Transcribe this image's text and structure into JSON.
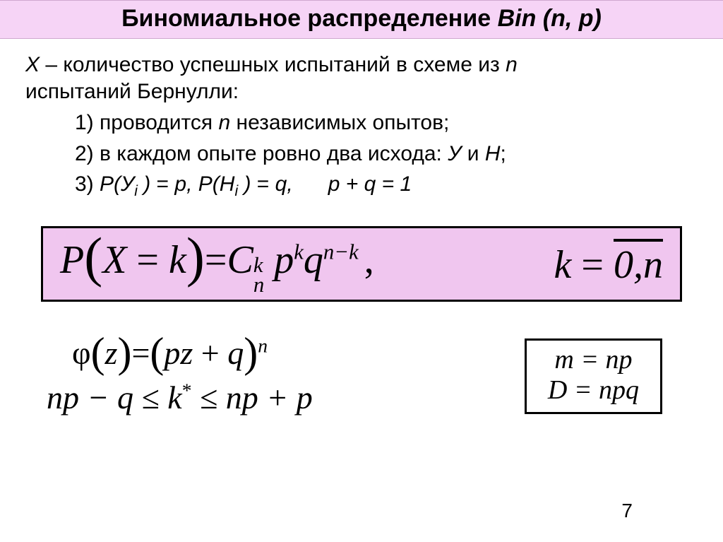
{
  "colors": {
    "titleBg": "#f6d4f6",
    "formulaBg": "#f0c6ef",
    "border": "#000000",
    "text": "#000000",
    "pageBg": "#ffffff"
  },
  "title": {
    "plain": "Биномиальное распределение  ",
    "italic": "Bin (n, p)"
  },
  "lead": {
    "X": "X",
    "rest1": " – количество успешных испытаний в схеме из  ",
    "n": "n",
    "rest2": "испытаний Бернулли:"
  },
  "list": {
    "i1a": "1) проводится ",
    "i1n": "n",
    "i1b": " независимых опытов;",
    "i2a": "2) в каждом опыте ровно два исхода: ",
    "i2Y": "У",
    "i2and": " и ",
    "i2N": "Н",
    "i2end": ";",
    "i3a": "3) ",
    "i3P1": "P(У",
    "i3sub": "i",
    "i3P1b": " )",
    "i3eq1": " =  ",
    "i3p": "p,",
    "i3sp": "  ",
    "i3P2": "P(Н",
    "i3P2b": " )",
    "i3eq2": " = ",
    "i3q": "q,",
    "i3gap": "      ",
    "i3sum": "p +  q = 1"
  },
  "formula": {
    "P": "P",
    "X": "X",
    "eq": " = ",
    "k": "k",
    "eq2": "=",
    "C": "C",
    "C_top": "k",
    "C_bot": "n",
    "p": "p",
    "p_exp": "k",
    "q": "q",
    "q_exp": "n−k",
    "comma": ",",
    "k2": "k",
    "eq3": "=",
    "range": "0,n"
  },
  "phi": {
    "phi": "φ",
    "z": "z",
    "eq": "=",
    "open": "(",
    "pz": "pz",
    "plus": " + ",
    "q": "q",
    "close": ")",
    "exp": "n"
  },
  "kline": {
    "a": "np − q ≤ ",
    "k": "k",
    "star": "*",
    "b": " ≤ np +  p"
  },
  "mD": {
    "l1": "m = np",
    "l2": "D = npq"
  },
  "pageNumber": "7"
}
